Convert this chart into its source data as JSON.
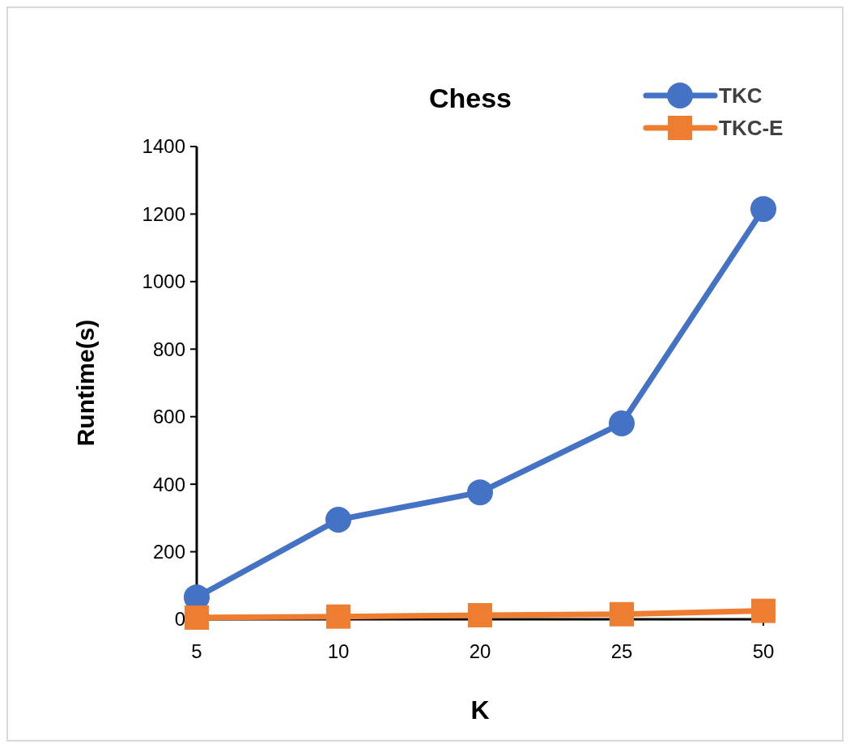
{
  "chart_data": {
    "type": "line",
    "title": "Chess",
    "xlabel": "K",
    "ylabel": "Runtime(s)",
    "categories": [
      "5",
      "10",
      "20",
      "25",
      "50"
    ],
    "ylim": [
      0,
      1400
    ],
    "yticks": [
      0,
      200,
      400,
      600,
      800,
      1000,
      1200,
      1400
    ],
    "grid": false,
    "legend": "top right",
    "series": [
      {
        "name": "TKC",
        "color": "#4472c4",
        "marker": "circle",
        "values": [
          65,
          295,
          376,
          580,
          1215
        ]
      },
      {
        "name": "TKC-E",
        "color": "#ed7d31",
        "marker": "square",
        "values": [
          5,
          8,
          12,
          15,
          25
        ]
      }
    ]
  }
}
